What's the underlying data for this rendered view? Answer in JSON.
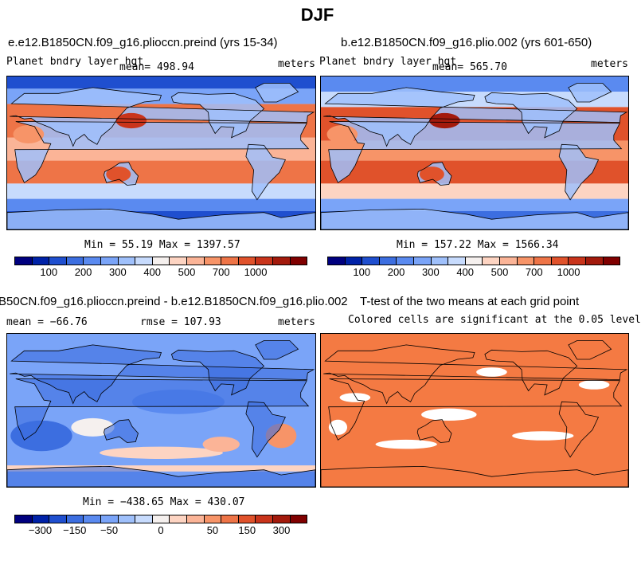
{
  "title": "DJF",
  "panels": [
    {
      "title": "e.e12.B1850CN.f09_g16.plioccn.preind (yrs 15-34)",
      "left_label": "Planet bndry layer hgt",
      "center_label": "mean= 498.94",
      "right_label": "meters",
      "stats": "Min =  55.19 Max = 1397.57"
    },
    {
      "title": "b.e12.B1850CN.f09_g16.plio.002 (yrs 601-650)",
      "left_label": "Planet bndry layer hgt",
      "center_label": "mean= 565.70",
      "right_label": "meters",
      "stats": "Min = 157.22 Max = 1566.34"
    },
    {
      "title": "B50CN.f09_g16.plioccn.preind - b.e12.B1850CN.f09_g16.plio.002",
      "left_label": "mean = −66.76",
      "center_label": "rmse = 107.93",
      "right_label": "meters",
      "stats": "Min = −438.65 Max = 430.07"
    },
    {
      "title": "T-test of the two means at each grid point",
      "subtitle": "Colored cells are significant at the 0.05 level"
    }
  ],
  "colorbars": {
    "abs": {
      "colors": [
        "#00007f",
        "#0022a8",
        "#1f4fcf",
        "#3c6ee0",
        "#5a8af0",
        "#7aa4f8",
        "#9fc0fb",
        "#c7dbfd",
        "#f5f0ee",
        "#fdd4c2",
        "#fbb497",
        "#f79468",
        "#ee7447",
        "#e0522b",
        "#c9341b",
        "#a31a0c",
        "#800000"
      ],
      "ticks": [
        "100",
        "200",
        "300",
        "400",
        "500",
        "700",
        "1000"
      ]
    },
    "diff": {
      "colors": [
        "#00007f",
        "#0022a8",
        "#1f4fcf",
        "#3c6ee0",
        "#5a8af0",
        "#7aa4f8",
        "#9fc0fb",
        "#c7dbfd",
        "#f5f0ee",
        "#fdd4c2",
        "#fbb497",
        "#f79468",
        "#ee7447",
        "#e0522b",
        "#c9341b",
        "#a31a0c",
        "#800000"
      ],
      "ticks": [
        "−300",
        "−150",
        "−50",
        "0",
        "50",
        "150",
        "300"
      ]
    }
  },
  "colors": {
    "warm": "#ee7447",
    "cool": "#3c6ee0",
    "significant": "#f47a43"
  }
}
